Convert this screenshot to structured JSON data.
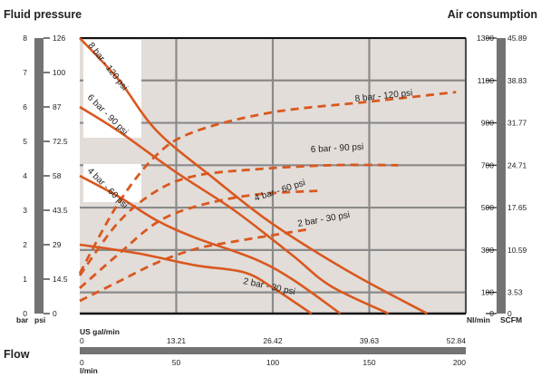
{
  "header": {
    "left_title": "Fluid pressure",
    "right_title": "Air consumption"
  },
  "axes": {
    "bar_unit": "bar",
    "psi_unit": "psi",
    "nl_unit": "Nl/min",
    "scfm_unit": "SCFM",
    "us_unit": "US gal/min",
    "lmin_unit": "l/min",
    "flow_label": "Flow"
  },
  "colors": {
    "plot_bg": "#e2ddd9",
    "curve": "#d9581f",
    "scale_bar": "#737373",
    "grid": "#8a8a8a"
  },
  "chart_data": {
    "type": "line",
    "x": {
      "min": 0,
      "max": 200,
      "unit": "l/min",
      "ticks": [
        0,
        50,
        100,
        150,
        200
      ],
      "secondary": {
        "unit": "US gal/min",
        "ticks": [
          "0",
          "13.21",
          "26.42",
          "39.63",
          "52.84"
        ]
      }
    },
    "y_left": {
      "min": 0,
      "max": 8,
      "unit": "bar",
      "ticks": [
        0,
        1,
        2,
        3,
        4,
        5,
        6,
        7,
        8
      ],
      "secondary": {
        "unit": "psi",
        "ticks": [
          "0",
          "14.5",
          "29",
          "43.5",
          "58",
          "72.5",
          "87",
          "100",
          "126"
        ]
      }
    },
    "y_right": {
      "min": 0,
      "max": 1300,
      "unit": "Nl/min",
      "ticks": [
        0,
        100,
        300,
        500,
        700,
        900,
        1100,
        1300
      ],
      "secondary": {
        "unit": "SCFM",
        "ticks": [
          "0",
          "3.53",
          "10.59",
          "17.65",
          "24.71",
          "31.77",
          "38.83",
          "45.89"
        ]
      }
    },
    "pressure_curves": [
      {
        "name": "8 bar - 120 psi",
        "points": [
          [
            0,
            8
          ],
          [
            20,
            6.8
          ],
          [
            40,
            5.3
          ],
          [
            70,
            3.9
          ],
          [
            100,
            2.6
          ],
          [
            140,
            1.2
          ],
          [
            180,
            0
          ]
        ]
      },
      {
        "name": "6 bar - 90 psi",
        "points": [
          [
            0,
            6
          ],
          [
            20,
            5.3
          ],
          [
            50,
            4.1
          ],
          [
            80,
            3.0
          ],
          [
            110,
            1.7
          ],
          [
            130,
            0.8
          ],
          [
            160,
            0
          ]
        ]
      },
      {
        "name": "4 bar - 60 psi",
        "points": [
          [
            0,
            4
          ],
          [
            20,
            3.4
          ],
          [
            40,
            2.7
          ],
          [
            60,
            2.2
          ],
          [
            90,
            1.6
          ],
          [
            110,
            1.0
          ],
          [
            135,
            0
          ]
        ]
      },
      {
        "name": "2 bar - 30 psi",
        "points": [
          [
            0,
            2
          ],
          [
            30,
            1.75
          ],
          [
            60,
            1.4
          ],
          [
            85,
            1.2
          ],
          [
            100,
            0.75
          ],
          [
            120,
            0
          ]
        ]
      }
    ],
    "air_curves": [
      {
        "name": "8 bar - 120 psi",
        "points": [
          [
            0,
            190
          ],
          [
            20,
            520
          ],
          [
            40,
            750
          ],
          [
            60,
            860
          ],
          [
            100,
            950
          ],
          [
            150,
            1000
          ],
          [
            195,
            1045
          ]
        ]
      },
      {
        "name": "6 bar - 90 psi",
        "points": [
          [
            0,
            180
          ],
          [
            20,
            430
          ],
          [
            40,
            580
          ],
          [
            60,
            650
          ],
          [
            90,
            680
          ],
          [
            130,
            700
          ],
          [
            165,
            700
          ]
        ]
      },
      {
        "name": "4 bar - 60 psi",
        "points": [
          [
            0,
            120
          ],
          [
            20,
            280
          ],
          [
            40,
            430
          ],
          [
            60,
            505
          ],
          [
            90,
            560
          ],
          [
            125,
            580
          ]
        ]
      },
      {
        "name": "2 bar - 30 psi",
        "points": [
          [
            0,
            60
          ],
          [
            20,
            150
          ],
          [
            40,
            240
          ],
          [
            60,
            305
          ],
          [
            80,
            340
          ],
          [
            100,
            370
          ],
          [
            120,
            400
          ]
        ]
      }
    ],
    "curve_labels": {
      "pressure": [
        "8 bar - 120 psi",
        "6 bar - 90 psi",
        "4 bar - 60 psi",
        "2 bar - 30 psi"
      ],
      "air": [
        "8 bar - 120 psi",
        "6 bar - 90 psi",
        "4 bar - 60 psi",
        "2 bar - 30 psi"
      ]
    },
    "grid": true
  }
}
